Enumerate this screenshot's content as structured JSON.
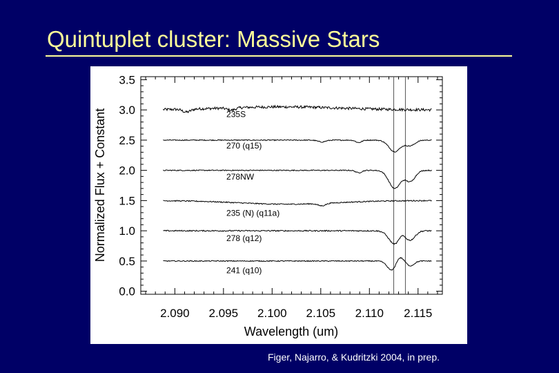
{
  "slide": {
    "title": "Quintuplet cluster: Massive Stars",
    "citation": "Figer, Najarro, & Kudritzki 2004, in prep."
  },
  "colors": {
    "background": "#000066",
    "title": "#ffff99",
    "citation": "#ffffff",
    "plot_ink": "#000000"
  },
  "chart_data": {
    "type": "line",
    "title": "",
    "xlabel": "Wavelength (um)",
    "ylabel": "Normalized Flux + Constant",
    "xlim": [
      2.0865,
      2.1175
    ],
    "ylim": [
      -0.05,
      3.55
    ],
    "xticks": [
      2.09,
      2.095,
      2.1,
      2.105,
      2.11,
      2.115
    ],
    "xtick_labels": [
      "2.090",
      "2.095",
      "2.100",
      "2.105",
      "2.110",
      "2.115"
    ],
    "yticks": [
      0.0,
      0.5,
      1.0,
      1.5,
      2.0,
      2.5,
      3.0,
      3.5
    ],
    "ytick_labels": [
      "0.0",
      "0.5",
      "1.0",
      "1.5",
      "2.0",
      "2.5",
      "3.0",
      "3.5"
    ],
    "grid": false,
    "reference_lines_x": [
      2.1125,
      2.1137
    ],
    "series": [
      {
        "name": "235S",
        "offset": 3.0,
        "noise": 0.022,
        "bump": 0.05,
        "bump_center": 2.101,
        "bump_width": 0.006,
        "absorptions": [
          [
            2.0912,
            0.05,
            0.0004
          ],
          [
            2.0958,
            0.04,
            0.0004
          ]
        ],
        "emission": [],
        "label_x": 2.0953,
        "label_y": 2.88
      },
      {
        "name": "270 (q15)",
        "offset": 2.5,
        "noise": 0.008,
        "bump": 0.0,
        "bump_center": 2.1,
        "bump_width": 0.005,
        "absorptions": [
          [
            2.1126,
            0.19,
            0.0006
          ],
          [
            2.1142,
            0.09,
            0.0005
          ],
          [
            2.1089,
            0.04,
            0.0003
          ],
          [
            2.1051,
            0.03,
            0.0004
          ]
        ],
        "emission": [],
        "label_x": 2.0953,
        "label_y": 2.36
      },
      {
        "name": "278NW",
        "offset": 2.0,
        "noise": 0.008,
        "bump": 0.0,
        "bump_center": 2.1,
        "bump_width": 0.005,
        "absorptions": [
          [
            2.1126,
            0.3,
            0.0006
          ],
          [
            2.1142,
            0.18,
            0.0005
          ],
          [
            2.1089,
            0.04,
            0.0003
          ]
        ],
        "emission": [],
        "label_x": 2.0953,
        "label_y": 1.85
      },
      {
        "name": "235 (N) (q11a)",
        "offset": 1.5,
        "noise": 0.009,
        "bump": -0.06,
        "bump_center": 2.1015,
        "bump_width": 0.005,
        "absorptions": [
          [
            2.1051,
            0.04,
            0.0004
          ]
        ],
        "emission": [],
        "label_x": 2.0953,
        "label_y": 1.25
      },
      {
        "name": "278 (q12)",
        "offset": 1.0,
        "noise": 0.01,
        "bump": 0.0,
        "bump_center": 2.1,
        "bump_width": 0.005,
        "absorptions": [
          [
            2.1126,
            0.22,
            0.0006
          ],
          [
            2.1142,
            0.15,
            0.0005
          ]
        ],
        "emission": [
          [
            2.1133,
            0.05,
            0.0003
          ]
        ],
        "label_x": 2.0953,
        "label_y": 0.83
      },
      {
        "name": "241 (q10)",
        "offset": 0.5,
        "noise": 0.008,
        "bump": 0.0,
        "bump_center": 2.1,
        "bump_width": 0.005,
        "absorptions": [
          [
            2.1124,
            0.18,
            0.0005
          ],
          [
            2.1142,
            0.08,
            0.0004
          ]
        ],
        "emission": [
          [
            2.113,
            0.12,
            0.0004
          ]
        ],
        "label_x": 2.0953,
        "label_y": 0.3
      }
    ]
  }
}
